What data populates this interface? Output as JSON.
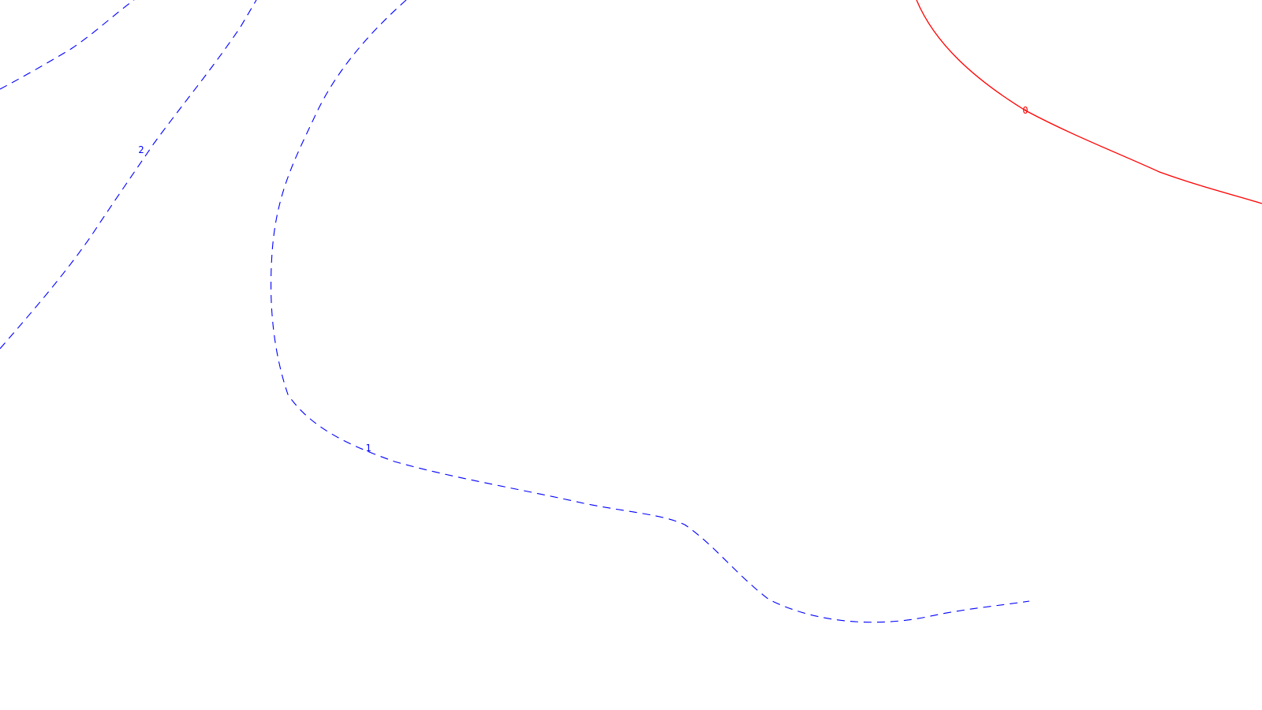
{
  "chart_data": {
    "type": "contour",
    "title": "",
    "xlabel": "",
    "ylabel": "",
    "colors": {
      "negative": "#0000ff",
      "zero": "#ff0000",
      "background": "#ffffff"
    },
    "contours": [
      {
        "level": "2",
        "style": "dashed",
        "color": "#0000ff",
        "segments": 2
      },
      {
        "level": "1",
        "style": "dashed",
        "color": "#0000ff",
        "segments": 1
      },
      {
        "level": "0",
        "style": "solid",
        "color": "#ff0000",
        "segments": 1
      }
    ]
  }
}
